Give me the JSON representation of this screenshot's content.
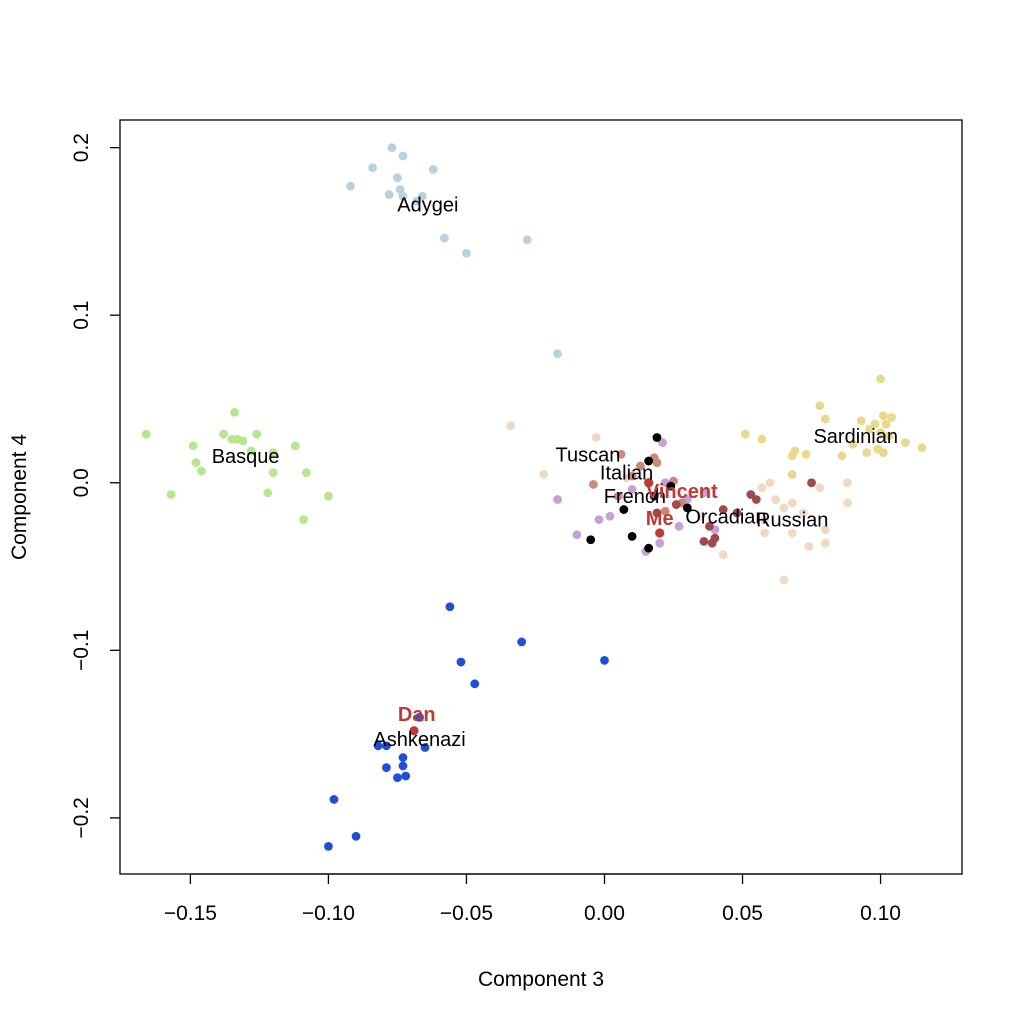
{
  "chart_data": {
    "type": "scatter",
    "xlabel": "Component 3",
    "ylabel": "Component 4",
    "xlim": [
      -0.1755,
      0.1295
    ],
    "ylim": [
      -0.2335,
      0.2165
    ],
    "x_ticks": [
      -0.15,
      -0.1,
      -0.05,
      0.0,
      0.05,
      0.1
    ],
    "x_tick_labels": [
      "−0.15",
      "−0.10",
      "−0.05",
      "0.00",
      "0.05",
      "0.10"
    ],
    "y_ticks": [
      -0.2,
      -0.1,
      0.0,
      0.1,
      0.2
    ],
    "y_tick_labels": [
      "−0.2",
      "−0.1",
      "0.0",
      "0.1",
      "0.2"
    ],
    "grid": false,
    "groups": [
      {
        "name": "Adygei",
        "color": "#b8d2dc",
        "label_at": [
          -0.064,
          0.166
        ],
        "points": [
          [
            -0.077,
            0.2
          ],
          [
            -0.073,
            0.195
          ],
          [
            -0.084,
            0.188
          ],
          [
            -0.062,
            0.187
          ],
          [
            -0.075,
            0.182
          ],
          [
            -0.092,
            0.177
          ],
          [
            -0.074,
            0.175
          ],
          [
            -0.078,
            0.172
          ],
          [
            -0.073,
            0.171
          ],
          [
            -0.066,
            0.171
          ],
          [
            -0.068,
            0.168
          ],
          [
            -0.058,
            0.146
          ],
          [
            -0.05,
            0.137
          ],
          [
            -0.028,
            0.145
          ],
          [
            -0.017,
            0.077
          ]
        ]
      },
      {
        "name": "Basque",
        "color": "#b7e68d",
        "label_at": [
          -0.13,
          0.016
        ],
        "points": [
          [
            -0.166,
            0.029
          ],
          [
            -0.134,
            0.042
          ],
          [
            -0.149,
            0.022
          ],
          [
            -0.138,
            0.029
          ],
          [
            -0.135,
            0.026
          ],
          [
            -0.133,
            0.026
          ],
          [
            -0.131,
            0.025
          ],
          [
            -0.126,
            0.029
          ],
          [
            -0.128,
            0.019
          ],
          [
            -0.148,
            0.012
          ],
          [
            -0.146,
            0.007
          ],
          [
            -0.12,
            0.018
          ],
          [
            -0.112,
            0.022
          ],
          [
            -0.12,
            0.006
          ],
          [
            -0.108,
            0.006
          ],
          [
            -0.157,
            -0.007
          ],
          [
            -0.122,
            -0.006
          ],
          [
            -0.1,
            -0.008
          ],
          [
            -0.109,
            -0.022
          ]
        ]
      },
      {
        "name": "Ashkenazi",
        "color": "#1f4fd6",
        "label_at": [
          -0.067,
          -0.153
        ],
        "points": [
          [
            -0.056,
            -0.074
          ],
          [
            -0.03,
            -0.095
          ],
          [
            0.0,
            -0.106
          ],
          [
            -0.052,
            -0.107
          ],
          [
            -0.047,
            -0.12
          ],
          [
            -0.067,
            -0.14
          ],
          [
            -0.065,
            -0.158
          ],
          [
            -0.082,
            -0.157
          ],
          [
            -0.079,
            -0.157
          ],
          [
            -0.073,
            -0.164
          ],
          [
            -0.073,
            -0.169
          ],
          [
            -0.079,
            -0.17
          ],
          [
            -0.072,
            -0.175
          ],
          [
            -0.075,
            -0.176
          ],
          [
            -0.098,
            -0.189
          ],
          [
            -0.09,
            -0.211
          ],
          [
            -0.1,
            -0.217
          ]
        ]
      },
      {
        "name": "Sardinian",
        "color": "#e8d98c",
        "label_at": [
          0.091,
          0.028
        ],
        "points": [
          [
            0.1,
            0.062
          ],
          [
            0.078,
            0.046
          ],
          [
            0.08,
            0.038
          ],
          [
            0.093,
            0.037
          ],
          [
            0.101,
            0.04
          ],
          [
            0.104,
            0.039
          ],
          [
            0.098,
            0.035
          ],
          [
            0.102,
            0.035
          ],
          [
            0.1,
            0.03
          ],
          [
            0.096,
            0.032
          ],
          [
            0.103,
            0.028
          ],
          [
            0.109,
            0.024
          ],
          [
            0.115,
            0.021
          ],
          [
            0.095,
            0.018
          ],
          [
            0.099,
            0.02
          ],
          [
            0.101,
            0.018
          ],
          [
            0.09,
            0.023
          ],
          [
            0.086,
            0.016
          ],
          [
            0.073,
            0.017
          ],
          [
            0.068,
            0.016
          ],
          [
            0.068,
            0.005
          ],
          [
            0.057,
            0.026
          ],
          [
            0.051,
            0.029
          ],
          [
            0.069,
            0.019
          ]
        ]
      },
      {
        "name": "Russian",
        "color": "#f0d9c4",
        "label_at": [
          0.068,
          -0.022
        ],
        "points": [
          [
            -0.034,
            0.034
          ],
          [
            -0.003,
            0.027
          ],
          [
            -0.022,
            0.005
          ],
          [
            0.088,
            0.0
          ],
          [
            0.078,
            -0.003
          ],
          [
            0.057,
            -0.003
          ],
          [
            0.06,
            0.0
          ],
          [
            0.062,
            -0.01
          ],
          [
            0.065,
            -0.015
          ],
          [
            0.068,
            -0.012
          ],
          [
            0.072,
            -0.018
          ],
          [
            0.058,
            -0.022
          ],
          [
            0.058,
            -0.03
          ],
          [
            0.068,
            -0.03
          ],
          [
            0.08,
            -0.028
          ],
          [
            0.08,
            -0.036
          ],
          [
            0.074,
            -0.038
          ],
          [
            0.088,
            -0.012
          ],
          [
            0.043,
            -0.043
          ],
          [
            0.065,
            -0.058
          ],
          [
            0.035,
            -0.02
          ],
          [
            0.008,
            0.003
          ]
        ]
      },
      {
        "name": "French",
        "color": "#c6a1d6",
        "label_at": [
          0.011,
          -0.008
        ],
        "points": [
          [
            0.021,
            0.024
          ],
          [
            -0.017,
            -0.01
          ],
          [
            -0.002,
            -0.022
          ],
          [
            0.002,
            -0.02
          ],
          [
            -0.01,
            -0.031
          ],
          [
            0.02,
            -0.036
          ],
          [
            0.015,
            -0.041
          ],
          [
            0.027,
            -0.026
          ],
          [
            0.03,
            -0.01
          ],
          [
            0.04,
            -0.028
          ],
          [
            0.036,
            -0.006
          ],
          [
            0.022,
            0.0
          ],
          [
            0.01,
            -0.004
          ]
        ]
      },
      {
        "name": "Italian",
        "color": "#c98b77",
        "label_at": [
          0.008,
          0.006
        ],
        "points": [
          [
            0.006,
            0.017
          ],
          [
            0.018,
            0.015
          ],
          [
            0.013,
            0.01
          ],
          [
            0.019,
            0.012
          ],
          [
            0.01,
            0.004
          ],
          [
            0.025,
            0.001
          ],
          [
            -0.004,
            -0.001
          ],
          [
            0.005,
            -0.008
          ],
          [
            0.028,
            -0.012
          ],
          [
            0.022,
            -0.017
          ]
        ]
      },
      {
        "name": "Orcadian",
        "color": "#a0494e",
        "label_at": [
          0.044,
          -0.02
        ],
        "points": [
          [
            0.053,
            -0.007
          ],
          [
            0.055,
            -0.01
          ],
          [
            0.043,
            -0.016
          ],
          [
            0.048,
            -0.018
          ],
          [
            0.038,
            -0.026
          ],
          [
            0.036,
            -0.035
          ],
          [
            0.039,
            -0.036
          ],
          [
            0.04,
            -0.033
          ],
          [
            0.075,
            0.0
          ],
          [
            0.026,
            -0.013
          ],
          [
            0.019,
            -0.018
          ]
        ]
      },
      {
        "name": "Tuscan",
        "color": "#000000",
        "label_at": [
          -0.006,
          0.017
        ],
        "points": [
          [
            0.019,
            0.027
          ],
          [
            0.016,
            0.013
          ],
          [
            0.024,
            -0.002
          ],
          [
            0.018,
            -0.008
          ],
          [
            0.007,
            -0.016
          ],
          [
            0.03,
            -0.015
          ],
          [
            -0.005,
            -0.034
          ],
          [
            0.01,
            -0.032
          ],
          [
            0.016,
            -0.039
          ]
        ]
      }
    ],
    "highlights": [
      {
        "name": "Vincent",
        "color": "#c03a35",
        "point": [
          0.016,
          0.0
        ],
        "label_at": [
          0.028,
          -0.005
        ]
      },
      {
        "name": "Me",
        "color": "#c03a35",
        "point": [
          0.02,
          -0.03
        ],
        "label_at": [
          0.02,
          -0.021
        ]
      },
      {
        "name": "Dan",
        "color": "#c03a35",
        "point": [
          -0.069,
          -0.148
        ],
        "label_at": [
          -0.068,
          -0.138
        ]
      }
    ]
  }
}
